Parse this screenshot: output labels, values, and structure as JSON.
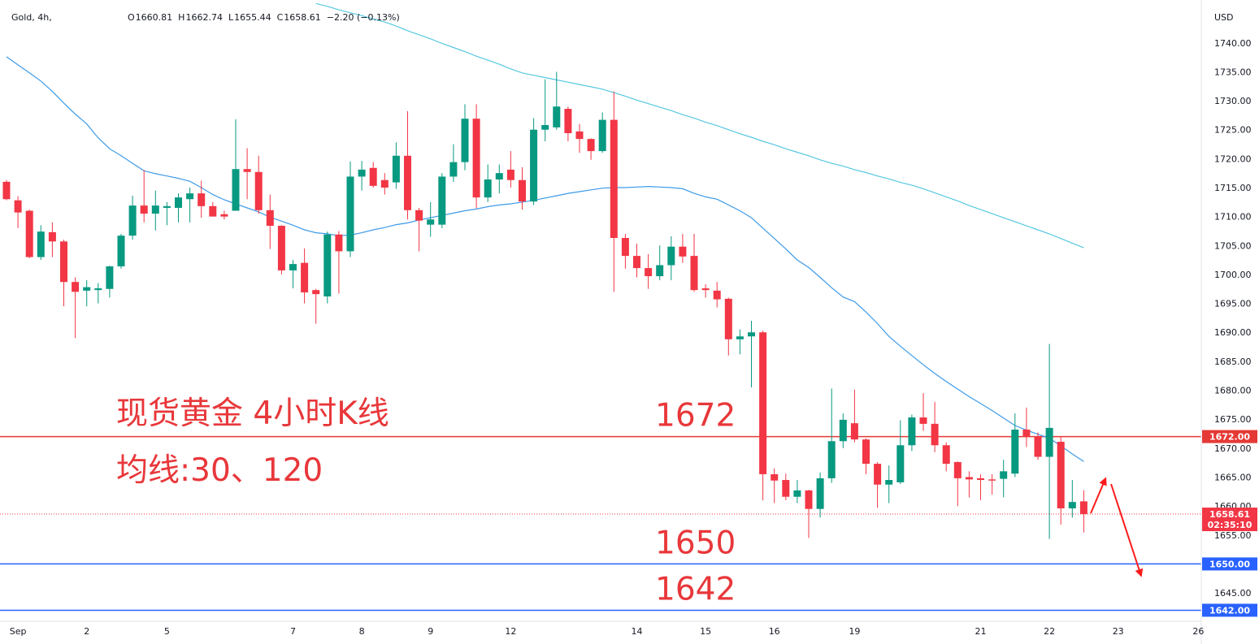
{
  "chart_data": {
    "type": "candlestick",
    "header": {
      "symbol": "Gold, 4h,",
      "ohlc": [
        {
          "key": "O",
          "value": 1660.81
        },
        {
          "key": "H",
          "value": 1662.74
        },
        {
          "key": "L",
          "value": 1655.44
        },
        {
          "key": "C",
          "value": 1658.61
        }
      ],
      "change": "−2.20 (−0.13%)"
    },
    "currency": "USD",
    "categories": [
      null,
      "Sep",
      null,
      null,
      null,
      null,
      null,
      "2",
      null,
      null,
      null,
      null,
      null,
      null,
      "5",
      null,
      null,
      null,
      null,
      null,
      null,
      null,
      null,
      null,
      null,
      "7",
      null,
      null,
      null,
      null,
      null,
      "8",
      null,
      null,
      null,
      null,
      null,
      "9",
      null,
      null,
      null,
      null,
      null,
      null,
      "12",
      null,
      null,
      null,
      null,
      null,
      null,
      null,
      null,
      null,
      null,
      "14",
      null,
      null,
      null,
      null,
      null,
      "15",
      null,
      null,
      null,
      null,
      null,
      "16",
      null,
      null,
      null,
      null,
      null,
      null,
      "19",
      null,
      null,
      null,
      null,
      null,
      null,
      null,
      null,
      null,
      null,
      "21",
      null,
      null,
      null,
      null,
      null,
      "22",
      null,
      null,
      null,
      null,
      null,
      "23",
      null,
      null,
      null,
      null,
      null,
      null,
      "26"
    ],
    "open": [
      1716.0,
      1712.8,
      1711.0,
      1703.0,
      1707.3,
      1705.7,
      1698.7,
      1697.2,
      1697.3,
      1697.5,
      1701.4,
      1706.7,
      1711.9,
      1710.5,
      1711.5,
      1711.5,
      1713.0,
      1714.0,
      1711.8,
      1710.4,
      1711.0,
      1718.2,
      1717.7,
      1711.1,
      1708.4,
      1700.7,
      1702.0,
      1697.3,
      1696.2,
      1706.9,
      1704.0,
      1716.9,
      1718.4,
      1716.3,
      1715.9,
      1720.5,
      1711.1,
      1708.6,
      1708.6,
      1716.9,
      1719.4,
      1726.9,
      1713.3,
      1716.4,
      1718.1,
      1716.3,
      1712.6,
      1725.0,
      1725.4,
      1728.6,
      1724.7,
      1723.4,
      1721.3,
      1726.7,
      1706.3,
      1703.2,
      1701.1,
      1699.7,
      1701.6,
      1704.8,
      1703.2,
      1697.6,
      1697.2,
      1695.8,
      1688.8,
      1689.3,
      1690.0,
      1665.5,
      1664.5,
      1661.6,
      1662.7,
      1659.5,
      1664.8,
      1671.2,
      1674.3,
      1671.5,
      1667.3,
      1663.7,
      1664.1,
      1670.5,
      1675.3,
      1674.2,
      1670.5,
      1667.6,
      1665.0,
      1664.8,
      1664.6,
      1664.7,
      1665.6,
      1673.2,
      1672.0,
      1668.5,
      1671.1,
      1659.6,
      1660.81,
      null,
      null,
      null,
      null,
      null,
      null,
      null,
      null,
      null,
      null
    ],
    "high": [
      1716.3,
      1713.5,
      1711.2,
      1708.5,
      1709.0,
      1706.0,
      1699.5,
      1699.0,
      1698.5,
      1701.5,
      1707.0,
      1713.6,
      1718.0,
      1714.5,
      1712.5,
      1714.0,
      1715.0,
      1716.2,
      1712.5,
      1711.0,
      1726.8,
      1721.8,
      1720.5,
      1713.8,
      1708.5,
      1702.5,
      1704.5,
      1697.5,
      1707.4,
      1707.5,
      1719.5,
      1719.6,
      1719.4,
      1717.5,
      1722.8,
      1728.2,
      1711.5,
      1712.5,
      1717.5,
      1722.5,
      1729.4,
      1729.4,
      1719.0,
      1719.0,
      1721.3,
      1718.5,
      1727.0,
      1733.7,
      1735.0,
      1729.0,
      1726.0,
      1723.5,
      1728.0,
      1731.6,
      1707.0,
      1705.3,
      1703.5,
      1705.0,
      1706.6,
      1707.0,
      1707.0,
      1698.3,
      1698.7,
      1696.0,
      1690.5,
      1692.0,
      1690.3,
      1666.5,
      1665.6,
      1664.5,
      1662.8,
      1665.8,
      1680.3,
      1676.0,
      1680.1,
      1671.7,
      1667.6,
      1667.0,
      1674.8,
      1675.8,
      1679.5,
      1678.0,
      1671.0,
      1667.7,
      1666.0,
      1665.5,
      1665.5,
      1668.0,
      1676.0,
      1677.0,
      1672.7,
      1688.0,
      1671.9,
      1664.5,
      1662.74,
      null,
      null,
      null,
      null,
      null,
      null,
      null,
      null,
      null,
      null
    ],
    "low": [
      1712.8,
      1708.0,
      1702.8,
      1702.5,
      1703.0,
      1694.5,
      1689.0,
      1694.5,
      1695.0,
      1696.0,
      1701.0,
      1706.0,
      1709.0,
      1707.6,
      1708.5,
      1709.0,
      1709.0,
      1709.8,
      1710.0,
      1709.5,
      1711.0,
      1713.0,
      1710.5,
      1704.4,
      1700.0,
      1697.6,
      1695.0,
      1691.5,
      1695.0,
      1696.7,
      1703.0,
      1714.5,
      1715.0,
      1713.8,
      1714.8,
      1709.5,
      1704.0,
      1706.5,
      1708.0,
      1716.0,
      1718.0,
      1711.4,
      1712.5,
      1714.0,
      1715.0,
      1711.2,
      1712.0,
      1723.0,
      1725.0,
      1723.0,
      1721.0,
      1719.8,
      1721.0,
      1697.0,
      1701.0,
      1699.5,
      1697.5,
      1699.0,
      1699.0,
      1702.0,
      1697.0,
      1696.0,
      1694.3,
      1686.0,
      1686.2,
      1680.5,
      1661.0,
      1660.5,
      1661.0,
      1660.5,
      1654.5,
      1658.0,
      1664.0,
      1670.0,
      1671.0,
      1665.5,
      1659.7,
      1660.5,
      1663.8,
      1669.5,
      1673.0,
      1669.3,
      1666.0,
      1660.0,
      1661.5,
      1661.0,
      1662.0,
      1661.5,
      1665.0,
      1670.2,
      1668.0,
      1654.3,
      1656.8,
      1658.0,
      1655.44,
      null,
      null,
      null,
      null,
      null,
      null,
      null,
      null,
      null,
      null
    ],
    "close": [
      1713.0,
      1710.7,
      1703.0,
      1707.4,
      1705.7,
      1698.7,
      1697.0,
      1697.8,
      1697.6,
      1701.4,
      1706.7,
      1711.9,
      1710.5,
      1711.9,
      1711.8,
      1713.3,
      1714.0,
      1711.8,
      1710.0,
      1710.0,
      1718.2,
      1717.7,
      1711.1,
      1708.4,
      1700.7,
      1701.8,
      1696.9,
      1696.6,
      1706.9,
      1704.0,
      1716.9,
      1718.1,
      1715.3,
      1715.0,
      1720.5,
      1711.1,
      1709.3,
      1709.5,
      1716.9,
      1719.4,
      1726.9,
      1713.3,
      1716.4,
      1717.5,
      1716.3,
      1712.6,
      1725.0,
      1725.8,
      1729.0,
      1724.4,
      1723.4,
      1721.3,
      1726.7,
      1706.3,
      1703.2,
      1701.1,
      1699.7,
      1701.6,
      1704.8,
      1703.1,
      1697.3,
      1697.3,
      1695.7,
      1688.8,
      1689.3,
      1690.0,
      1665.5,
      1664.4,
      1661.6,
      1662.7,
      1659.5,
      1664.8,
      1671.2,
      1674.9,
      1671.5,
      1667.3,
      1663.7,
      1664.5,
      1670.5,
      1675.3,
      1674.2,
      1670.5,
      1667.3,
      1664.8,
      1664.6,
      1664.5,
      1664.4,
      1666.0,
      1673.2,
      1672.0,
      1668.5,
      1673.5,
      1659.6,
      1660.7,
      1658.61,
      null,
      null,
      null,
      null,
      null,
      null,
      null,
      null,
      null,
      null
    ],
    "up_color": "#089981",
    "down_color": "#f23645",
    "overlays": [
      {
        "color": "#3d9be9",
        "values": [
          1737.6,
          1736.2,
          1734.8,
          1733.4,
          1731.6,
          1729.6,
          1727.7,
          1726.0,
          1723.6,
          1721.7,
          1720.5,
          1719.2,
          1717.9,
          1717.4,
          1717.0,
          1716.6,
          1716.1,
          1715.0,
          1713.8,
          1712.9,
          1712.2,
          1711.5,
          1710.8,
          1709.9,
          1709.2,
          1708.5,
          1707.7,
          1707.2,
          1707.0,
          1706.7,
          1706.8,
          1707.2,
          1707.7,
          1708.1,
          1708.6,
          1708.9,
          1709.4,
          1709.8,
          1710.2,
          1710.6,
          1711.0,
          1711.3,
          1711.7,
          1712.0,
          1712.2,
          1712.5,
          1712.8,
          1713.2,
          1713.6,
          1714.0,
          1714.3,
          1714.6,
          1714.9,
          1715.0,
          1715.0,
          1715.1,
          1715.2,
          1715.1,
          1715.0,
          1714.8,
          1714.0,
          1713.4,
          1713.0,
          1712.0,
          1711.0,
          1709.8,
          1708.0,
          1706.2,
          1704.4,
          1702.5,
          1701.2,
          1699.5,
          1697.7,
          1696.1,
          1695.3,
          1693.5,
          1691.5,
          1689.3,
          1687.6,
          1686.0,
          1684.4,
          1682.9,
          1681.5,
          1680.2,
          1678.9,
          1677.7,
          1676.5,
          1675.2,
          1673.9,
          1673.1,
          1672.4,
          1671.7,
          1670.4,
          1669.0,
          1667.7,
          null,
          null,
          null,
          null,
          null,
          null,
          null,
          null,
          null,
          null
        ]
      },
      {
        "color": "#56c8e0",
        "values": [
          null,
          null,
          null,
          null,
          null,
          null,
          null,
          null,
          null,
          null,
          null,
          null,
          null,
          null,
          null,
          null,
          null,
          null,
          null,
          null,
          null,
          null,
          null,
          null,
          null,
          null,
          null,
          1746.8,
          1746.3,
          1745.7,
          1745.2,
          1744.7,
          1744.1,
          1743.6,
          1742.9,
          1742.1,
          1741.4,
          1740.7,
          1739.9,
          1739.2,
          1738.5,
          1737.7,
          1737.0,
          1736.3,
          1735.5,
          1734.8,
          1734.4,
          1734.0,
          1733.6,
          1733.2,
          1732.8,
          1732.4,
          1732.0,
          1731.4,
          1730.8,
          1730.1,
          1729.5,
          1728.9,
          1728.3,
          1727.6,
          1727.0,
          1726.3,
          1725.7,
          1725.0,
          1724.3,
          1723.7,
          1723.0,
          1722.4,
          1721.7,
          1721.1,
          1720.5,
          1719.8,
          1719.2,
          1718.7,
          1718.1,
          1717.6,
          1717.0,
          1716.5,
          1715.9,
          1715.4,
          1714.8,
          1714.1,
          1713.4,
          1712.7,
          1711.9,
          1711.2,
          1710.5,
          1709.8,
          1709.1,
          1708.4,
          1707.7,
          1707.0,
          1706.2,
          1705.4,
          1704.6,
          null,
          null,
          null,
          null,
          null,
          null,
          null,
          null,
          null,
          null
        ]
      }
    ],
    "ylim": [
      1640.1,
      1747.4
    ],
    "yticks": [
      {
        "value": 1645,
        "label": "1645.00"
      },
      {
        "value": 1650,
        "label": "1650.00"
      },
      {
        "value": 1655,
        "label": "1655.00"
      },
      {
        "value": 1660,
        "label": "1660.00"
      },
      {
        "value": 1665,
        "label": "1665.00"
      },
      {
        "value": 1670,
        "label": "1670.00"
      },
      {
        "value": 1675,
        "label": "1675.00"
      },
      {
        "value": 1680,
        "label": "1680.00"
      },
      {
        "value": 1685,
        "label": "1685.00"
      },
      {
        "value": 1690,
        "label": "1690.00"
      },
      {
        "value": 1695,
        "label": "1695.00"
      },
      {
        "value": 1700,
        "label": "1700.00"
      },
      {
        "value": 1705,
        "label": "1705.00"
      },
      {
        "value": 1710,
        "label": "1710.00"
      },
      {
        "value": 1715,
        "label": "1715.00"
      },
      {
        "value": 1720,
        "label": "1720.00"
      },
      {
        "value": 1725,
        "label": "1725.00"
      },
      {
        "value": 1730,
        "label": "1730.00"
      },
      {
        "value": 1735,
        "label": "1735.00"
      },
      {
        "value": 1740,
        "label": "1740.00"
      }
    ],
    "hlines": [
      {
        "value": 1672,
        "label": "1672.00",
        "annotation": "1672",
        "color": "#e53935"
      },
      {
        "value": 1650,
        "label": "1650.00",
        "annotation": "1650",
        "color": "#2962ff"
      },
      {
        "value": 1642,
        "label": "1642.00",
        "annotation": "1642",
        "color": "#2962ff"
      }
    ],
    "last_price": {
      "value": 1658.61,
      "label": "1658.61",
      "countdown": "02:35:10",
      "color": "#f23645"
    },
    "annotations": [
      "现货黄金 4小时K线",
      "均线:30、120"
    ],
    "grid": false
  }
}
